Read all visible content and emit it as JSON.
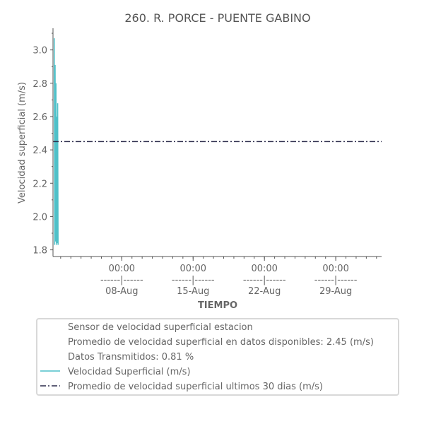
{
  "chart_data": {
    "type": "line",
    "title": "260. R. PORCE - PUENTE GABINO",
    "xlabel": "TIEMPO",
    "ylabel": "Velocidad superficial (m/s)",
    "ylim": [
      1.76,
      3.13
    ],
    "y_ticks": [
      "1.8",
      "2.0",
      "2.2",
      "2.4",
      "2.6",
      "2.8",
      "3.0"
    ],
    "x_ticks": [
      {
        "line1": "00:00",
        "line2": "------|------",
        "line3": "08-Aug"
      },
      {
        "line1": "00:00",
        "line2": "------|------",
        "line3": "15-Aug"
      },
      {
        "line1": "00:00",
        "line2": "------|------",
        "line3": "22-Aug"
      },
      {
        "line1": "00:00",
        "line2": "------|------",
        "line3": "29-Aug"
      }
    ],
    "series": [
      {
        "name": "Velocidad Superficial (m/s)",
        "color": "#4fc0c8",
        "style": "solid",
        "x": [
          "2023-08-01 09:00",
          "2023-08-01 10:00",
          "2023-08-01 11:00",
          "2023-08-01 12:00",
          "2023-08-01 13:00",
          "2023-08-01 14:00",
          "2023-08-01 15:00",
          "2023-08-01 16:00",
          "2023-08-01 17:00",
          "2023-08-01 18:00"
        ],
        "values": [
          3.07,
          1.83,
          2.91,
          1.85,
          2.8,
          1.83,
          2.6,
          1.84,
          2.68,
          1.83
        ]
      },
      {
        "name": "Promedio de velocidad superficial ultimos 30 dias (m/s)",
        "color": "#2a2a4a",
        "style": "dashdot",
        "value": 2.45
      }
    ],
    "x_start": "2023-08-01 06:00",
    "x_end": "2023-09-02 12:00",
    "legend": {
      "position": "bottom",
      "entries": [
        {
          "text": "Sensor de velocidad superficial estacion",
          "marker": "none"
        },
        {
          "text": "Promedio de velocidad superficial en datos disponibles: 2.45 (m/s)",
          "marker": "none"
        },
        {
          "text": "Datos Transmitidos: 0.81 %",
          "marker": "none"
        },
        {
          "text": "Velocidad Superficial (m/s)",
          "marker": "solid"
        },
        {
          "text": "Promedio de velocidad superficial ultimos 30 dias (m/s)",
          "marker": "dashdot"
        }
      ]
    }
  }
}
